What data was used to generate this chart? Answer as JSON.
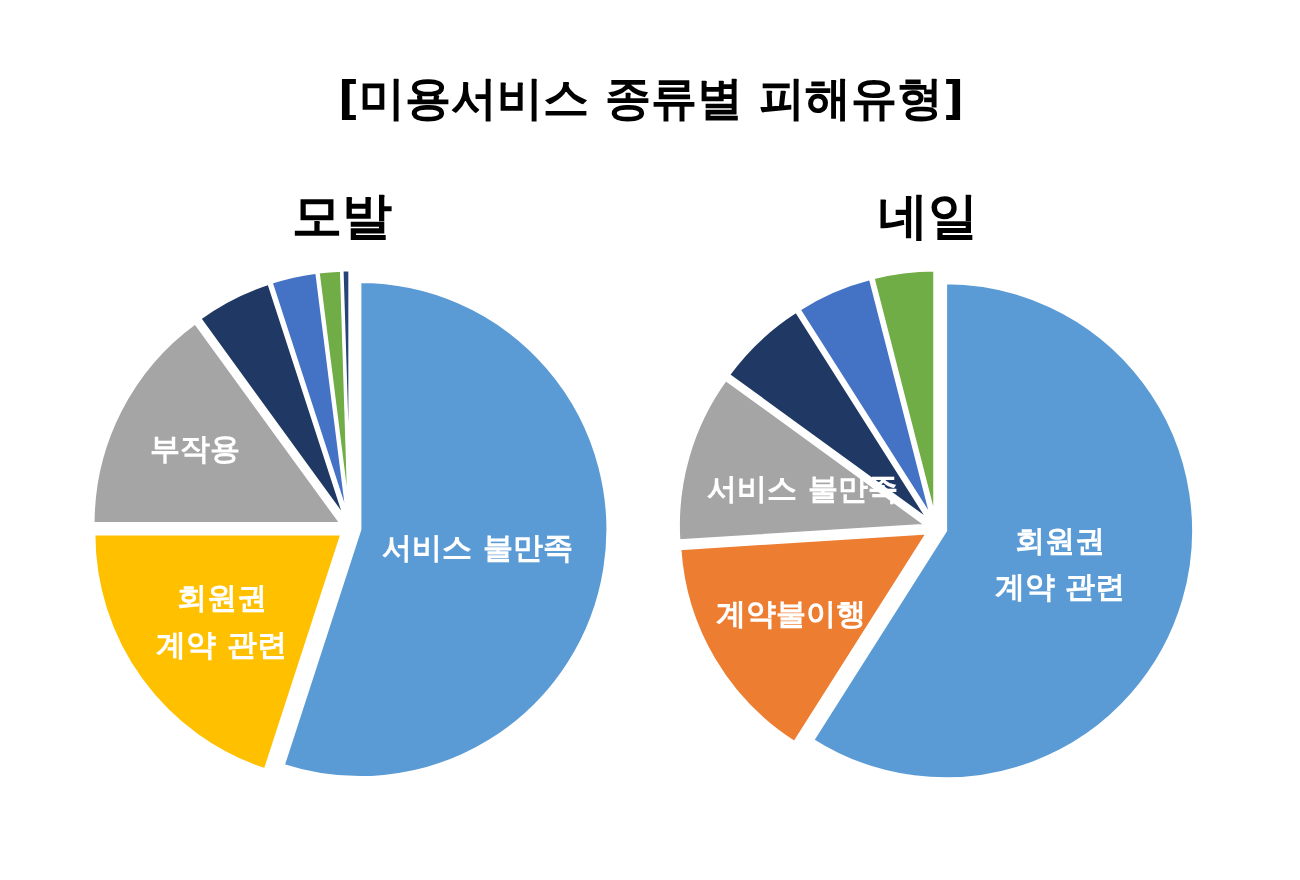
{
  "chart_data": [
    {
      "type": "other",
      "title": "[미용서비스 종류별 피해유형]"
    },
    {
      "type": "pie",
      "title": "모발",
      "categories": [
        "서비스 불만족",
        "회원권\n계약 관련",
        "부작용",
        null,
        null,
        null,
        null
      ],
      "values": [
        55,
        20,
        15,
        5,
        3,
        1.5,
        0.5
      ],
      "colors": [
        "#5b9bd5",
        "#ffc000",
        "#a5a5a5",
        "#1f3864",
        "#4472c4",
        "#70ad47",
        "#264478"
      ]
    },
    {
      "type": "pie",
      "title": "네일",
      "categories": [
        "회원권\n계약 관련",
        "계약불이행",
        "서비스 불만족",
        null,
        null,
        null
      ],
      "values": [
        59,
        15,
        11,
        6,
        5,
        4
      ],
      "colors": [
        "#5b9bd5",
        "#ed7d31",
        "#a5a5a5",
        "#1f3864",
        "#4472c4",
        "#70ad47"
      ]
    }
  ]
}
